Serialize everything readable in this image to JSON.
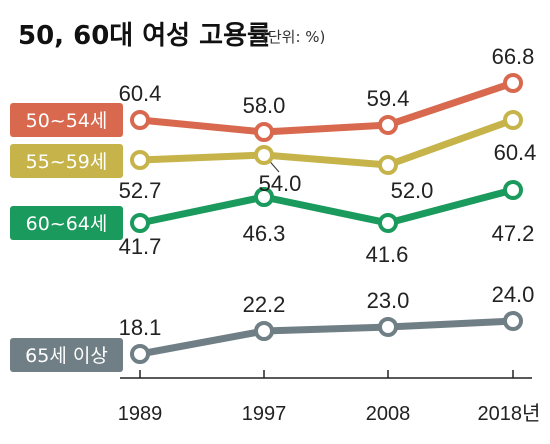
{
  "title": "50, 60대 여성 고용률",
  "unit": "(단위: %)",
  "chart_data": {
    "type": "line",
    "title": "50, 60대 여성 고용률",
    "unit": "(단위: %)",
    "categories": [
      "1989",
      "1997",
      "2008",
      "2018년"
    ],
    "ylim": [
      10,
      70
    ],
    "grid": false,
    "legend": "left, inline labels",
    "series": [
      {
        "name": "50~54세",
        "color": "#d8694f",
        "values": [
          60.4,
          58.0,
          59.4,
          66.8
        ],
        "labels": [
          "60.4",
          "58.0",
          "59.4",
          "66.8"
        ]
      },
      {
        "name": "55~59세",
        "color": "#c6b44a",
        "values": [
          52.7,
          54.0,
          52.0,
          60.4
        ],
        "labels": [
          "52.7",
          "54.0",
          "52.0",
          "60.4"
        ]
      },
      {
        "name": "60~64세",
        "color": "#1a9a5c",
        "values": [
          41.7,
          46.3,
          41.6,
          47.2
        ],
        "labels": [
          "41.7",
          "46.3",
          "41.6",
          "47.2"
        ]
      },
      {
        "name": "65세 이상",
        "color": "#6f7f85",
        "values": [
          18.1,
          22.2,
          23.0,
          24.0
        ],
        "labels": [
          "18.1",
          "22.2",
          "23.0",
          "24.0"
        ]
      }
    ]
  }
}
